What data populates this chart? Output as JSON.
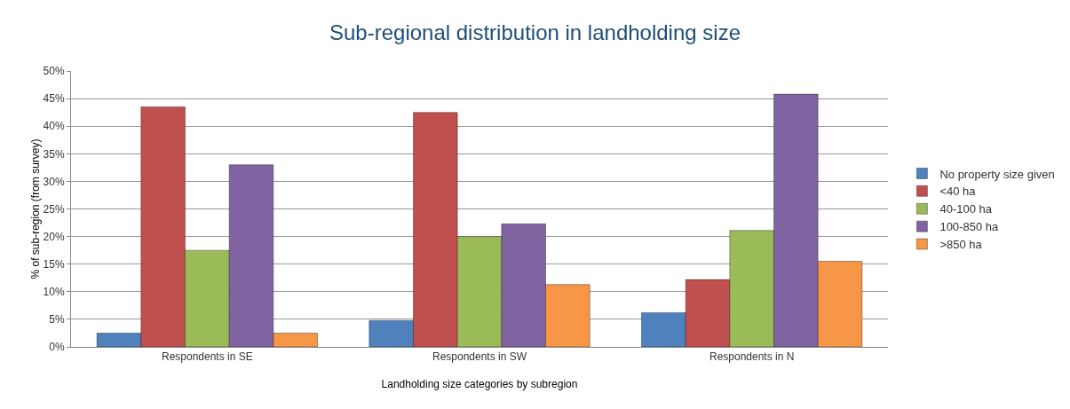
{
  "chart_data": {
    "type": "bar",
    "title": "Sub-regional distribution in landholding size",
    "xlabel": "Landholding size categories by subregion",
    "ylabel": "% of sub-region (from survey)",
    "categories": [
      "Respondents in SE",
      "Respondents in SW",
      "Respondents in N"
    ],
    "series": [
      {
        "name": "No property size given",
        "color": "#4f81bd",
        "values": [
          2.5,
          4.8,
          6.2
        ]
      },
      {
        "name": "<40 ha",
        "color": "#c0504d",
        "values": [
          43.5,
          42.5,
          12.2
        ]
      },
      {
        "name": "40-100 ha",
        "color": "#9bbb59",
        "values": [
          17.5,
          20,
          21.1
        ]
      },
      {
        "name": "100-850 ha",
        "color": "#8064a2",
        "values": [
          33,
          22.3,
          45.8
        ]
      },
      {
        "name": ">850 ha",
        "color": "#f79646",
        "values": [
          2.5,
          11.3,
          15.5
        ]
      }
    ],
    "ylim": [
      0,
      50
    ],
    "yticks": [
      {
        "value": 0,
        "label": "0%"
      },
      {
        "value": 5,
        "label": "5%"
      },
      {
        "value": 10,
        "label": "10%"
      },
      {
        "value": 15,
        "label": "15%"
      },
      {
        "value": 20,
        "label": "20%"
      },
      {
        "value": 25,
        "label": "25%"
      },
      {
        "value": 30,
        "label": "30%"
      },
      {
        "value": 35,
        "label": "35%"
      },
      {
        "value": 40,
        "label": "40%"
      },
      {
        "value": 45,
        "label": "45%"
      },
      {
        "value": 50,
        "label": "50%"
      }
    ],
    "grid": "y",
    "legend": "right"
  }
}
